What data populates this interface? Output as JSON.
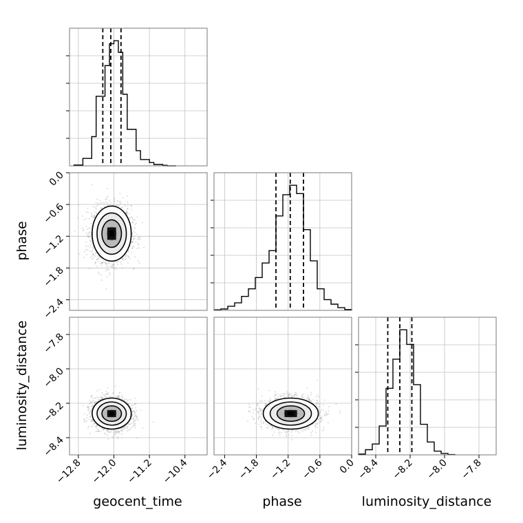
{
  "chart_data": {
    "type": "corner",
    "parameters": [
      "geocent_time",
      "phase",
      "luminosity_distance"
    ],
    "axis_labels": {
      "geocent_time": "geocent_time",
      "phase": "phase",
      "luminosity_distance": "luminosity_distance"
    },
    "grid": true,
    "ranges": {
      "geocent_time": [
        -13.0,
        -9.9
      ],
      "phase": [
        -2.6,
        0.0
      ],
      "luminosity_distance": [
        -8.5,
        -7.7
      ]
    },
    "ticks": {
      "geocent_time": [
        {
          "value": -12.8,
          "label": "−12.8"
        },
        {
          "value": -12.0,
          "label": "−12.0"
        },
        {
          "value": -11.2,
          "label": "−11.2"
        },
        {
          "value": -10.4,
          "label": "−10.4"
        }
      ],
      "phase": [
        {
          "value": -2.4,
          "label": "−2.4"
        },
        {
          "value": -1.8,
          "label": "−1.8"
        },
        {
          "value": -1.2,
          "label": "−1.2"
        },
        {
          "value": -0.6,
          "label": "−0.6"
        },
        {
          "value": 0.0,
          "label": "0.0"
        }
      ],
      "luminosity_distance": [
        {
          "value": -8.4,
          "label": "−8.4"
        },
        {
          "value": -8.2,
          "label": "−8.2"
        },
        {
          "value": -8.0,
          "label": "−8.0"
        },
        {
          "value": -7.8,
          "label": "−7.8"
        }
      ]
    },
    "histograms": [
      {
        "parameter": "geocent_time",
        "bin_edges": [
          -12.9,
          -12.7,
          -12.5,
          -12.4,
          -12.2,
          -12.1,
          -12.0,
          -11.9,
          -11.8,
          -11.7,
          -11.5,
          -11.4,
          -11.2,
          -11.1,
          -10.9,
          -10.8,
          -10.6
        ],
        "counts": [
          0.3,
          2.7,
          10.6,
          25.2,
          36.3,
          44.2,
          45.3,
          41.1,
          25.9,
          13.2,
          5.5,
          2.3,
          1.2,
          0.5,
          0.2,
          0.0
        ],
        "quantiles": [
          -12.25,
          -12.07,
          -11.84
        ]
      },
      {
        "parameter": "phase",
        "bin_edges": [
          -2.6,
          -2.47,
          -2.34,
          -2.21,
          -2.08,
          -1.95,
          -1.82,
          -1.69,
          -1.56,
          -1.43,
          -1.3,
          -1.17,
          -1.04,
          -0.91,
          -0.78,
          -0.65,
          -0.52,
          -0.39,
          -0.26,
          -0.13,
          0.0
        ],
        "counts": [
          0.2,
          0.5,
          1.5,
          2.8,
          5.2,
          8.0,
          12.2,
          17.6,
          22.2,
          35.1,
          43.0,
          46.5,
          43.4,
          30.0,
          18.4,
          8.0,
          4.0,
          2.3,
          1.0,
          0.3
        ],
        "quantiles": [
          -1.43,
          -1.16,
          -0.91
        ]
      },
      {
        "parameter": "luminosity_distance",
        "bin_edges": [
          -8.5,
          -8.46,
          -8.42,
          -8.38,
          -8.34,
          -8.3,
          -8.26,
          -8.22,
          -8.18,
          -8.14,
          -8.1,
          -8.06,
          -8.02,
          -7.98,
          -7.94
        ],
        "counts": [
          0.3,
          1.8,
          3.8,
          10.1,
          23.3,
          33.5,
          43.8,
          38.7,
          24.6,
          10.7,
          4.5,
          1.3,
          0.5,
          0.1
        ],
        "quantiles": [
          -8.33,
          -8.26,
          -8.19
        ]
      }
    ],
    "joint_distributions": [
      {
        "x": "geocent_time",
        "y": "phase",
        "mean": [
          -12.05,
          -1.15
        ],
        "sd": [
          0.22,
          0.26
        ],
        "corr": 0.0,
        "n_points": 2200,
        "contour_sigma": [
          0.5,
          1.0,
          1.5,
          2.0
        ]
      },
      {
        "x": "geocent_time",
        "y": "luminosity_distance",
        "mean": [
          -12.05,
          -8.26
        ],
        "sd": [
          0.22,
          0.045
        ],
        "corr": -0.05,
        "n_points": 2200,
        "contour_sigma": [
          0.5,
          1.0,
          1.5,
          2.0
        ]
      },
      {
        "x": "phase",
        "y": "luminosity_distance",
        "mean": [
          -1.15,
          -8.26
        ],
        "sd": [
          0.26,
          0.045
        ],
        "corr": 0.0,
        "n_points": 2200,
        "contour_sigma": [
          0.5,
          1.0,
          1.5,
          2.0
        ]
      }
    ]
  }
}
